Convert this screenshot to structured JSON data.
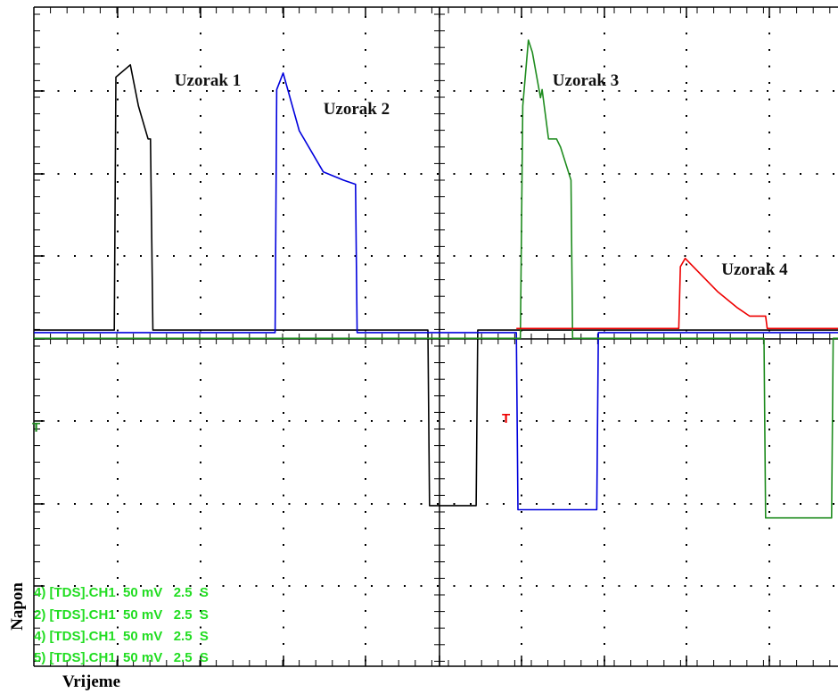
{
  "chart_data": {
    "type": "line",
    "title": "",
    "xlabel": "Vrijeme",
    "ylabel": "Napon",
    "xlim": [
      0,
      10
    ],
    "ylim": [
      -4,
      4
    ],
    "grid": true,
    "colors": {
      "grid": "#000000",
      "black": "#000000",
      "blue": "#0000dd",
      "green": "#1f8c1f",
      "red": "#ee0000",
      "status": "#22dd22"
    },
    "annotations": [
      {
        "id": "uzorak-1",
        "text": "Uzorak 1",
        "x": 1.75,
        "y": 3.05
      },
      {
        "id": "uzorak-2",
        "text": "Uzorak 2",
        "x": 3.6,
        "y": 2.7
      },
      {
        "id": "uzorak-3",
        "text": "Uzorak 3",
        "x": 6.45,
        "y": 3.05
      },
      {
        "id": "uzorak-4",
        "text": "Uzorak 4",
        "x": 8.55,
        "y": 0.75
      }
    ],
    "series": [
      {
        "color": "black",
        "x": [
          0,
          1.0,
          1.02,
          1.2,
          1.3,
          1.42,
          1.45,
          1.48,
          1.55,
          4.9,
          4.92,
          5.5,
          5.52,
          6.0,
          10.0
        ],
        "y": [
          0.08,
          0.08,
          3.15,
          3.3,
          2.8,
          2.4,
          2.4,
          0.08,
          0.08,
          0.08,
          -2.05,
          -2.05,
          0.08,
          0.08,
          0.08
        ]
      },
      {
        "color": "blue",
        "x": [
          0,
          3.0,
          3.02,
          3.1,
          3.3,
          3.6,
          3.85,
          4.0,
          4.02,
          4.1,
          6.0,
          6.02,
          7.0,
          7.02,
          7.5,
          10.0
        ],
        "y": [
          0.05,
          0.05,
          3.0,
          3.2,
          2.5,
          2.0,
          1.9,
          1.85,
          0.05,
          0.05,
          0.05,
          -2.1,
          -2.1,
          0.05,
          0.05,
          0.05
        ]
      },
      {
        "color": "green",
        "x": [
          0,
          5.0,
          6.05,
          6.08,
          6.15,
          6.2,
          6.3,
          6.32,
          6.4,
          6.5,
          6.55,
          6.68,
          6.7,
          6.72,
          9.08,
          9.1,
          9.92,
          9.94,
          10.0
        ],
        "y": [
          -0.02,
          -0.02,
          -0.02,
          2.8,
          3.6,
          3.45,
          2.9,
          3.0,
          2.4,
          2.4,
          2.3,
          1.9,
          -0.02,
          -0.02,
          -0.02,
          -2.2,
          -2.2,
          -0.02,
          -0.02
        ]
      },
      {
        "color": "red",
        "x": [
          6.0,
          8.02,
          8.04,
          8.1,
          8.25,
          8.5,
          8.75,
          8.9,
          9.1,
          9.12,
          10.0
        ],
        "y": [
          0.1,
          0.1,
          0.85,
          0.95,
          0.8,
          0.55,
          0.35,
          0.25,
          0.25,
          0.1,
          0.1
        ]
      }
    ]
  },
  "trigger_marker": {
    "left": "T",
    "right": "T"
  },
  "status_lines": [
    "4) [TDS].CH1  50 mV   2.5  S",
    "2) [TDS].CH1  50 mV   2.5  S",
    "4) [TDS].CH1  50 mV   2.5  S",
    "5) [TDS].CH1  50 mV   2.5  S"
  ]
}
